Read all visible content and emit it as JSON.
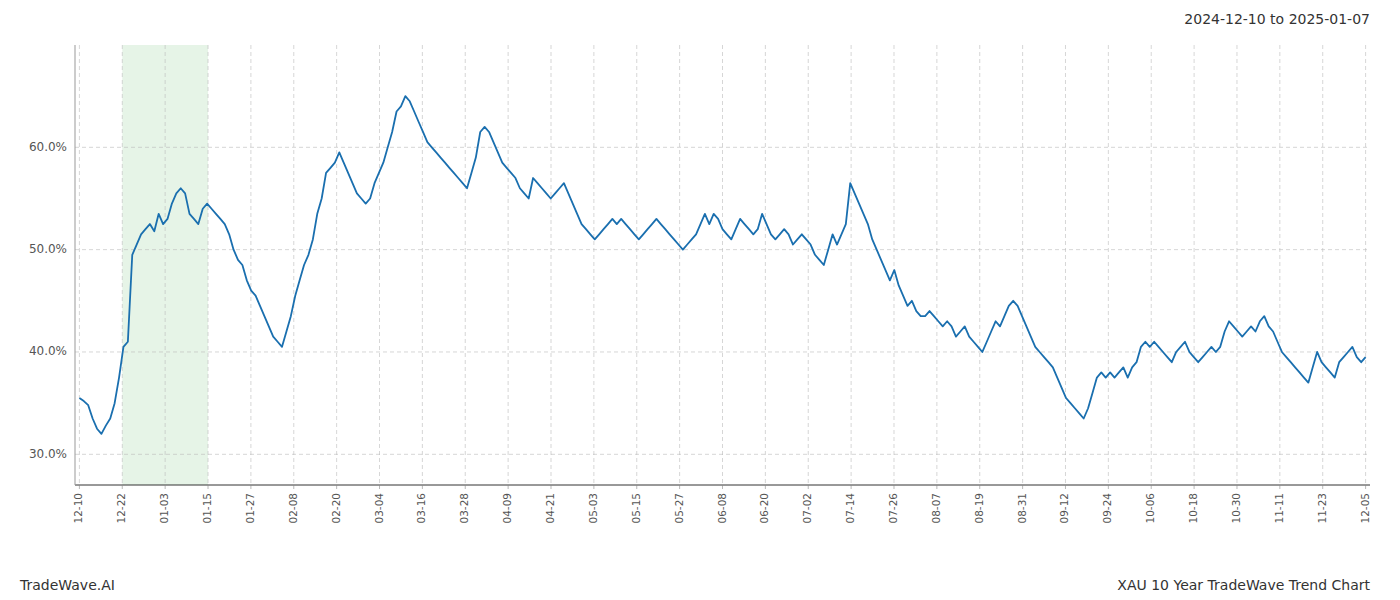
{
  "chart_data": {
    "type": "line",
    "title": "2024-12-10 to 2025-01-07",
    "annotations": [
      "TradeWave.AI",
      "XAU 10 Year TradeWave Trend Chart"
    ],
    "color": "#1a6faf",
    "grid": true,
    "highlight": {
      "start": "12-22",
      "end": "01-15",
      "color": "#c8e6c9"
    },
    "ylim": [
      27.0,
      70.0
    ],
    "yticks": [
      {
        "value": 30.0,
        "label": "30.0%"
      },
      {
        "value": 40.0,
        "label": "40.0%"
      },
      {
        "value": 50.0,
        "label": "50.0%"
      },
      {
        "value": 60.0,
        "label": "60.0%"
      }
    ],
    "xticks": [
      "12-10",
      "12-22",
      "01-03",
      "01-15",
      "01-27",
      "02-08",
      "02-20",
      "03-04",
      "03-16",
      "03-28",
      "04-09",
      "04-21",
      "05-03",
      "05-15",
      "05-27",
      "06-08",
      "06-20",
      "07-02",
      "07-14",
      "07-26",
      "08-07",
      "08-19",
      "08-31",
      "09-12",
      "09-24",
      "10-06",
      "10-18",
      "10-30",
      "11-11",
      "11-23",
      "12-05"
    ],
    "values": [
      35.5,
      35.2,
      34.8,
      33.5,
      32.5,
      32.0,
      32.8,
      33.5,
      35.0,
      37.5,
      40.5,
      41.0,
      49.5,
      50.5,
      51.5,
      52.0,
      52.5,
      51.8,
      53.5,
      52.5,
      53.0,
      54.5,
      55.5,
      56.0,
      55.5,
      53.5,
      53.0,
      52.5,
      54.0,
      54.5,
      54.0,
      53.5,
      53.0,
      52.5,
      51.5,
      50.0,
      49.0,
      48.5,
      47.0,
      46.0,
      45.5,
      44.5,
      43.5,
      42.5,
      41.5,
      41.0,
      40.5,
      42.0,
      43.5,
      45.5,
      47.0,
      48.5,
      49.5,
      51.0,
      53.5,
      55.0,
      57.5,
      58.0,
      58.5,
      59.5,
      58.5,
      57.5,
      56.5,
      55.5,
      55.0,
      54.5,
      55.0,
      56.5,
      57.5,
      58.5,
      60.0,
      61.5,
      63.5,
      64.0,
      65.0,
      64.5,
      63.5,
      62.5,
      61.5,
      60.5,
      60.0,
      59.5,
      59.0,
      58.5,
      58.0,
      57.5,
      57.0,
      56.5,
      56.0,
      57.5,
      59.0,
      61.5,
      62.0,
      61.5,
      60.5,
      59.5,
      58.5,
      58.0,
      57.5,
      57.0,
      56.0,
      55.5,
      55.0,
      57.0,
      56.5,
      56.0,
      55.5,
      55.0,
      55.5,
      56.0,
      56.5,
      55.5,
      54.5,
      53.5,
      52.5,
      52.0,
      51.5,
      51.0,
      51.5,
      52.0,
      52.5,
      53.0,
      52.5,
      53.0,
      52.5,
      52.0,
      51.5,
      51.0,
      51.5,
      52.0,
      52.5,
      53.0,
      52.5,
      52.0,
      51.5,
      51.0,
      50.5,
      50.0,
      50.5,
      51.0,
      51.5,
      52.5,
      53.5,
      52.5,
      53.5,
      53.0,
      52.0,
      51.5,
      51.0,
      52.0,
      53.0,
      52.5,
      52.0,
      51.5,
      52.0,
      53.5,
      52.5,
      51.5,
      51.0,
      51.5,
      52.0,
      51.5,
      50.5,
      51.0,
      51.5,
      51.0,
      50.5,
      49.5,
      49.0,
      48.5,
      50.0,
      51.5,
      50.5,
      51.5,
      52.5,
      56.5,
      55.5,
      54.5,
      53.5,
      52.5,
      51.0,
      50.0,
      49.0,
      48.0,
      47.0,
      48.0,
      46.5,
      45.5,
      44.5,
      45.0,
      44.0,
      43.5,
      43.5,
      44.0,
      43.5,
      43.0,
      42.5,
      43.0,
      42.5,
      41.5,
      42.0,
      42.5,
      41.5,
      41.0,
      40.5,
      40.0,
      41.0,
      42.0,
      43.0,
      42.5,
      43.5,
      44.5,
      45.0,
      44.5,
      43.5,
      42.5,
      41.5,
      40.5,
      40.0,
      39.5,
      39.0,
      38.5,
      37.5,
      36.5,
      35.5,
      35.0,
      34.5,
      34.0,
      33.5,
      34.5,
      36.0,
      37.5,
      38.0,
      37.5,
      38.0,
      37.5,
      38.0,
      38.5,
      37.5,
      38.5,
      39.0,
      40.5,
      41.0,
      40.5,
      41.0,
      40.5,
      40.0,
      39.5,
      39.0,
      40.0,
      40.5,
      41.0,
      40.0,
      39.5,
      39.0,
      39.5,
      40.0,
      40.5,
      40.0,
      40.5,
      42.0,
      43.0,
      42.5,
      42.0,
      41.5,
      42.0,
      42.5,
      42.0,
      43.0,
      43.5,
      42.5,
      42.0,
      41.0,
      40.0,
      39.5,
      39.0,
      38.5,
      38.0,
      37.5,
      37.0,
      38.5,
      40.0,
      39.0,
      38.5,
      38.0,
      37.5,
      39.0,
      39.5,
      40.0,
      40.5,
      39.5,
      39.0,
      39.5
    ]
  }
}
